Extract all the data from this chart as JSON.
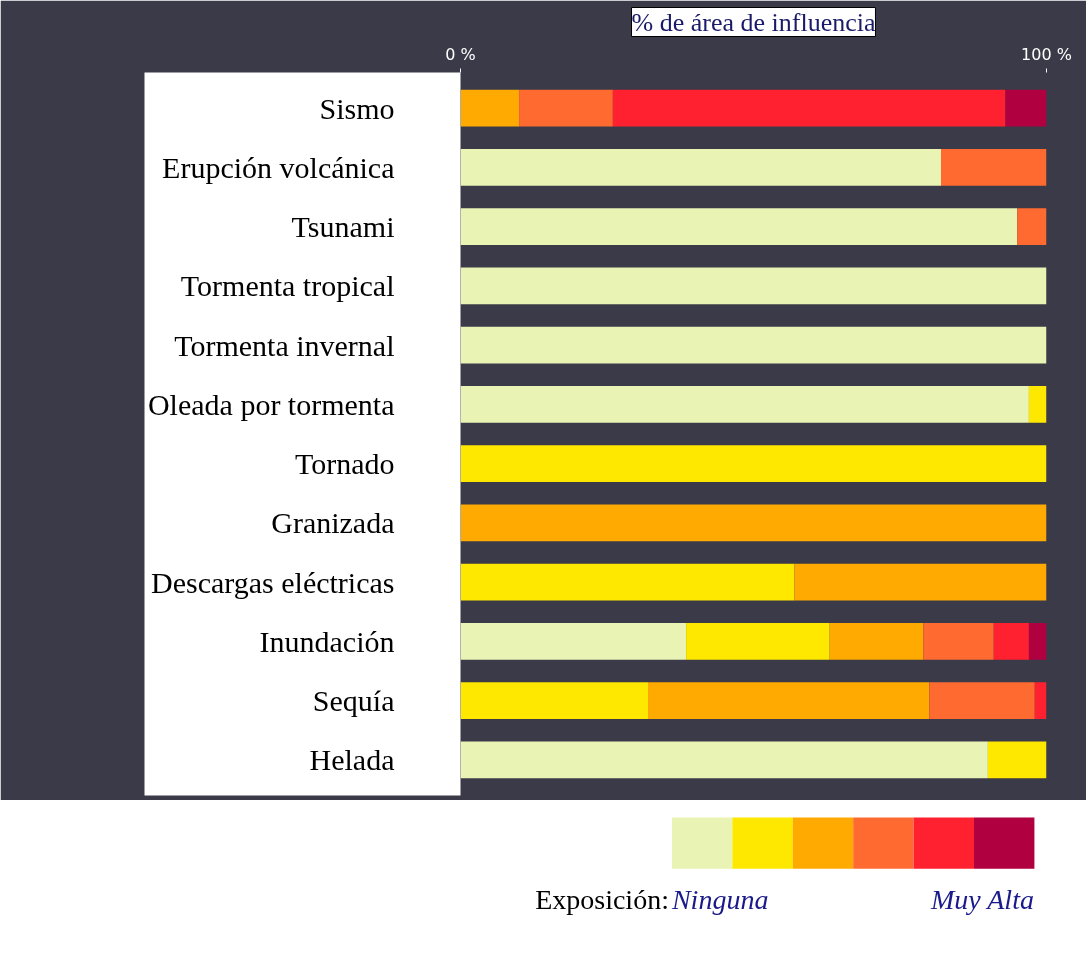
{
  "chart_data": {
    "type": "bar",
    "orientation": "horizontal",
    "stacked": true,
    "title": "% de área de influencia",
    "categories": [
      "Sismo",
      "Erupción volcánica",
      "Tsunami",
      "Tormenta tropical",
      "Tormenta invernal",
      "Oleada por tormenta",
      "Tornado",
      "Granizada",
      "Descargas eléctricas",
      "Inundación",
      "Sequía",
      "Helada"
    ],
    "series": [
      {
        "name": "Ninguna",
        "color": "#e8f3b4",
        "values": [
          0,
          82,
          95,
          100,
          100,
          97,
          0,
          0,
          0,
          38.5,
          0,
          90
        ]
      },
      {
        "color": "#ffe800",
        "values": [
          0,
          0,
          0,
          0,
          0,
          3,
          100,
          0,
          57,
          24.5,
          32,
          10
        ]
      },
      {
        "color": "#ffaa00",
        "values": [
          10,
          0,
          0,
          0,
          0,
          0,
          0,
          100,
          43,
          16,
          48,
          0
        ]
      },
      {
        "color": "#ff6a30",
        "values": [
          16,
          18,
          5,
          0,
          0,
          0,
          0,
          0,
          0,
          12,
          18,
          0
        ]
      },
      {
        "color": "#ff2030",
        "values": [
          67,
          0,
          0,
          0,
          0,
          0,
          0,
          0,
          0,
          6,
          2,
          0
        ]
      },
      {
        "name": "Muy Alta",
        "color": "#b00040",
        "values": [
          7,
          0,
          0,
          0,
          0,
          0,
          0,
          0,
          0,
          3,
          0,
          0
        ]
      }
    ],
    "xlim": [
      0,
      100
    ],
    "xticks": [
      {
        "value": 0,
        "label": "0 %"
      },
      {
        "value": 100,
        "label": "100 %"
      }
    ],
    "legend_title": "Exposición:",
    "legend": "bottom",
    "grid": false
  }
}
